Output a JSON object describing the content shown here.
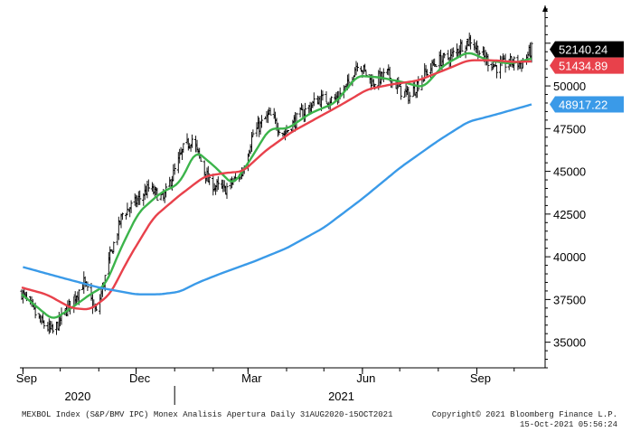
{
  "chart_data": {
    "type": "line",
    "subtype": "ohlc-bars-with-moving-averages",
    "title": "",
    "xlabel": "",
    "ylabel": "",
    "ylim": [
      33500,
      54500
    ],
    "y_ticks": [
      35000,
      37500,
      40000,
      42500,
      45000,
      47500,
      50000
    ],
    "y_axis_position": "right",
    "grid": false,
    "legend": "none",
    "x_ticks": [
      {
        "label": "Sep",
        "date": "2020-09-01"
      },
      {
        "label": "Dec",
        "date": "2020-12-01"
      },
      {
        "label": "Mar",
        "date": "2021-03-01"
      },
      {
        "label": "Jun",
        "date": "2021-06-01"
      },
      {
        "label": "Sep",
        "date": "2021-09-01"
      }
    ],
    "x_range": [
      "2020-08-31",
      "2021-10-15"
    ],
    "year_labels": [
      {
        "label": "2020",
        "date": "2020-10-15"
      },
      {
        "label": "2021",
        "date": "2021-05-15"
      }
    ],
    "year_divider_date": "2021-01-01",
    "price_series": {
      "style": "ohlc",
      "color": "#000000",
      "anchors": [
        [
          "2020-08-31",
          37900
        ],
        [
          "2020-09-15",
          36200
        ],
        [
          "2020-09-25",
          35600
        ],
        [
          "2020-10-06",
          36900
        ],
        [
          "2020-10-20",
          38500
        ],
        [
          "2020-10-30",
          36700
        ],
        [
          "2020-11-10",
          40000
        ],
        [
          "2020-11-20",
          42500
        ],
        [
          "2020-12-01",
          43200
        ],
        [
          "2020-12-11",
          44000
        ],
        [
          "2020-12-23",
          43400
        ],
        [
          "2021-01-08",
          46300
        ],
        [
          "2021-01-15",
          46900
        ],
        [
          "2021-01-29",
          44300
        ],
        [
          "2021-02-10",
          43900
        ],
        [
          "2021-02-24",
          44900
        ],
        [
          "2021-03-05",
          47200
        ],
        [
          "2021-03-18",
          48300
        ],
        [
          "2021-03-30",
          47200
        ],
        [
          "2021-04-12",
          48300
        ],
        [
          "2021-04-26",
          49200
        ],
        [
          "2021-05-10",
          49200
        ],
        [
          "2021-05-20",
          50000
        ],
        [
          "2021-05-28",
          51400
        ],
        [
          "2021-06-09",
          50200
        ],
        [
          "2021-06-21",
          50700
        ],
        [
          "2021-07-02",
          49700
        ],
        [
          "2021-07-09",
          49400
        ],
        [
          "2021-07-20",
          50600
        ],
        [
          "2021-07-30",
          51400
        ],
        [
          "2021-08-11",
          51700
        ],
        [
          "2021-08-20",
          52400
        ],
        [
          "2021-08-27",
          52700
        ],
        [
          "2021-09-06",
          51700
        ],
        [
          "2021-09-17",
          51100
        ],
        [
          "2021-09-28",
          51400
        ],
        [
          "2021-10-07",
          51300
        ],
        [
          "2021-10-15",
          52140
        ]
      ]
    },
    "moving_averages": [
      {
        "color": "#3cb44b",
        "anchors": [
          [
            "2020-08-31",
            37800
          ],
          [
            "2020-09-25",
            36300
          ],
          [
            "2020-10-10",
            37000
          ],
          [
            "2020-10-25",
            37800
          ],
          [
            "2020-11-06",
            38300
          ],
          [
            "2020-11-20",
            40700
          ],
          [
            "2020-12-03",
            42600
          ],
          [
            "2020-12-20",
            43700
          ],
          [
            "2021-01-05",
            44300
          ],
          [
            "2021-01-18",
            46200
          ],
          [
            "2021-02-02",
            45300
          ],
          [
            "2021-02-17",
            44200
          ],
          [
            "2021-03-03",
            45700
          ],
          [
            "2021-03-18",
            47500
          ],
          [
            "2021-04-02",
            47500
          ],
          [
            "2021-04-20",
            48400
          ],
          [
            "2021-05-10",
            49000
          ],
          [
            "2021-05-28",
            50600
          ],
          [
            "2021-06-15",
            50500
          ],
          [
            "2021-07-05",
            50200
          ],
          [
            "2021-07-20",
            49900
          ],
          [
            "2021-08-05",
            51200
          ],
          [
            "2021-08-25",
            52000
          ],
          [
            "2021-09-10",
            51500
          ],
          [
            "2021-09-28",
            51300
          ],
          [
            "2021-10-15",
            51600
          ]
        ]
      },
      {
        "color": "#e8414b",
        "anchors": [
          [
            "2020-08-31",
            38200
          ],
          [
            "2020-09-20",
            37800
          ],
          [
            "2020-10-10",
            37000
          ],
          [
            "2020-10-25",
            36900
          ],
          [
            "2020-11-10",
            37800
          ],
          [
            "2020-11-25",
            39900
          ],
          [
            "2020-12-15",
            42300
          ],
          [
            "2021-01-05",
            43600
          ],
          [
            "2021-01-25",
            44700
          ],
          [
            "2021-02-10",
            44900
          ],
          [
            "2021-02-25",
            45000
          ],
          [
            "2021-03-15",
            46200
          ],
          [
            "2021-04-05",
            47300
          ],
          [
            "2021-04-25",
            48100
          ],
          [
            "2021-05-15",
            48900
          ],
          [
            "2021-06-05",
            49800
          ],
          [
            "2021-06-25",
            50100
          ],
          [
            "2021-07-15",
            50300
          ],
          [
            "2021-08-05",
            50900
          ],
          [
            "2021-08-25",
            51500
          ],
          [
            "2021-09-15",
            51500
          ],
          [
            "2021-10-01",
            51400
          ],
          [
            "2021-10-15",
            51434.89
          ]
        ]
      },
      {
        "color": "#3a9ae8",
        "anchors": [
          [
            "2020-09-01",
            39400
          ],
          [
            "2020-10-01",
            38800
          ],
          [
            "2020-11-01",
            38200
          ],
          [
            "2020-12-01",
            37800
          ],
          [
            "2020-12-20",
            37800
          ],
          [
            "2021-01-05",
            37950
          ],
          [
            "2021-01-20",
            38500
          ],
          [
            "2021-02-10",
            39100
          ],
          [
            "2021-03-05",
            39700
          ],
          [
            "2021-04-01",
            40500
          ],
          [
            "2021-05-01",
            41700
          ],
          [
            "2021-06-01",
            43400
          ],
          [
            "2021-07-01",
            45200
          ],
          [
            "2021-08-01",
            46800
          ],
          [
            "2021-08-25",
            47900
          ],
          [
            "2021-09-15",
            48300
          ],
          [
            "2021-10-15",
            48917.22
          ]
        ]
      }
    ],
    "last_value_labels": [
      {
        "value": 52140.24,
        "text": "52140.24",
        "bg": "#000000",
        "fg": "#ffffff"
      },
      {
        "value": 51434.89,
        "text": "51434.89",
        "bg": "#e8414b",
        "fg": "#ffffff"
      },
      {
        "value": 48917.22,
        "text": "48917.22",
        "bg": "#3a9ae8",
        "fg": "#ffffff"
      }
    ]
  },
  "footer": {
    "description": "MEXBOL Index (S&P/BMV IPC) Monex Analisis Apertura  Daily 31AUG2020-15OCT2021",
    "copyright": "Copyright© 2021 Bloomberg Finance L.P.",
    "timestamp": "15-Oct-2021 05:56:24"
  }
}
